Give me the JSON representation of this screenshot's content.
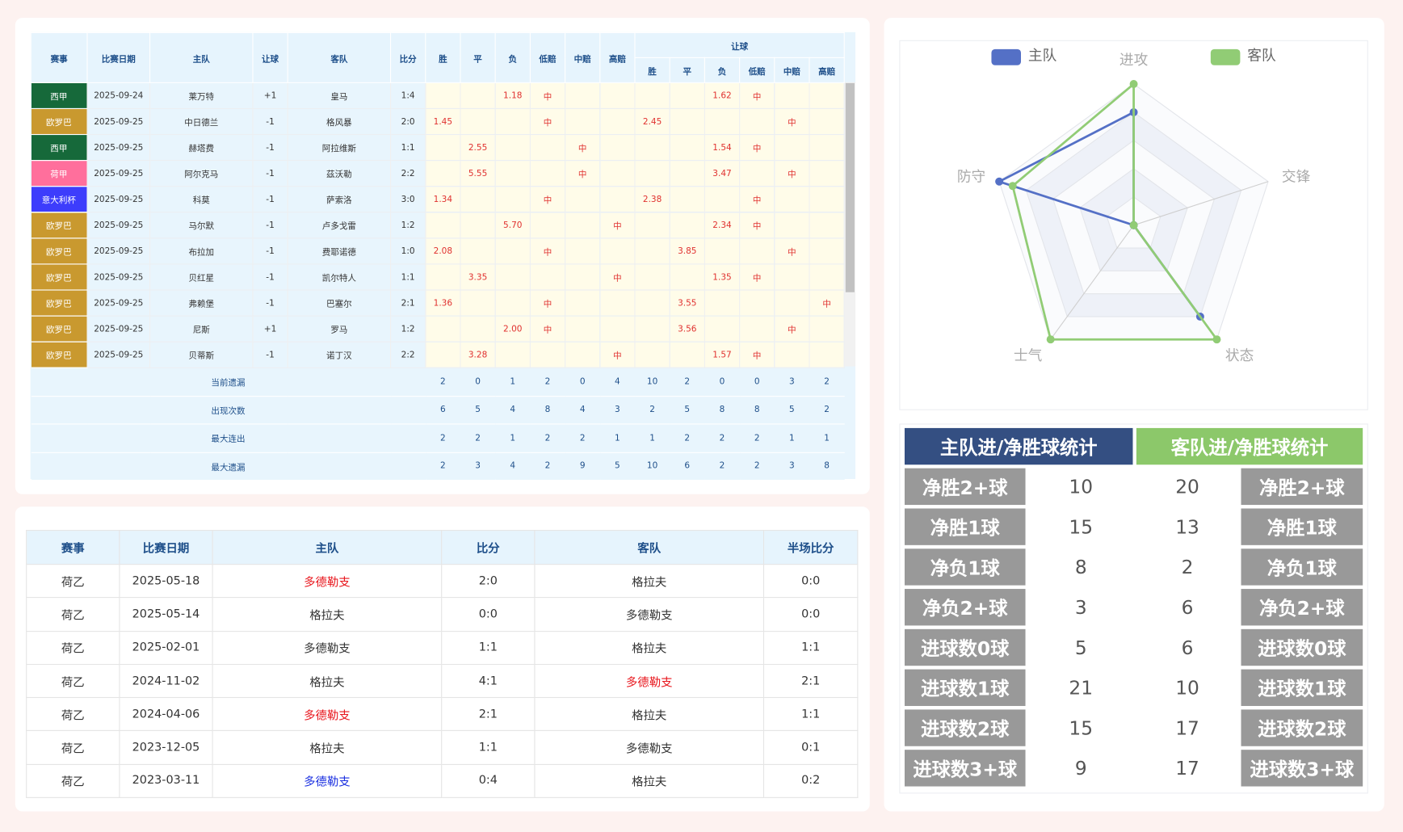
{
  "odds_table": {
    "headers": [
      "赛事",
      "比赛日期",
      "主队",
      "让球",
      "客队",
      "比分",
      "胜",
      "平",
      "负",
      "低赔",
      "中赔",
      "高赔"
    ],
    "group_header": "让球",
    "sub_headers": [
      "胜",
      "平",
      "负",
      "低赔",
      "中赔",
      "高赔"
    ],
    "league_colors": [
      "#16693a",
      "#c9992f",
      "#16693a",
      "#ff6f9c",
      "#3d3dfc",
      "#c9992f",
      "#c9992f",
      "#c9992f",
      "#c9992f",
      "#c9992f",
      "#c9992f"
    ],
    "rows": [
      [
        "西甲",
        "2025-09-24",
        "莱万特",
        "+1",
        "皇马",
        "1:4",
        null,
        null,
        "1.18",
        "中",
        null,
        null,
        null,
        null,
        "1.62",
        "中",
        null,
        null
      ],
      [
        "欧罗巴",
        "2025-09-25",
        "中日德兰",
        "-1",
        "格风暴",
        "2:0",
        "1.45",
        null,
        null,
        "中",
        null,
        null,
        "2.45",
        null,
        null,
        null,
        "中",
        null
      ],
      [
        "西甲",
        "2025-09-25",
        "赫塔费",
        "-1",
        "阿拉维斯",
        "1:1",
        null,
        "2.55",
        null,
        null,
        "中",
        null,
        null,
        null,
        "1.54",
        "中",
        null,
        null
      ],
      [
        "荷甲",
        "2025-09-25",
        "阿尔克马",
        "-1",
        "茲沃勒",
        "2:2",
        null,
        "5.55",
        null,
        null,
        "中",
        null,
        null,
        null,
        "3.47",
        null,
        "中",
        null
      ],
      [
        "意大利杯",
        "2025-09-25",
        "科莫",
        "-1",
        "萨索洛",
        "3:0",
        "1.34",
        null,
        null,
        "中",
        null,
        null,
        "2.38",
        null,
        null,
        "中",
        null,
        null
      ],
      [
        "欧罗巴",
        "2025-09-25",
        "马尔默",
        "-1",
        "卢多戈雷",
        "1:2",
        null,
        null,
        "5.70",
        null,
        null,
        "中",
        null,
        null,
        "2.34",
        "中",
        null,
        null
      ],
      [
        "欧罗巴",
        "2025-09-25",
        "布拉加",
        "-1",
        "费耶诺德",
        "1:0",
        "2.08",
        null,
        null,
        "中",
        null,
        null,
        null,
        "3.85",
        null,
        null,
        "中",
        null
      ],
      [
        "欧罗巴",
        "2025-09-25",
        "贝红星",
        "-1",
        "凯尔特人",
        "1:1",
        null,
        "3.35",
        null,
        null,
        null,
        "中",
        null,
        null,
        "1.35",
        "中",
        null,
        null
      ],
      [
        "欧罗巴",
        "2025-09-25",
        "弗赖堡",
        "-1",
        "巴塞尔",
        "2:1",
        "1.36",
        null,
        null,
        "中",
        null,
        null,
        null,
        "3.55",
        null,
        null,
        null,
        "中"
      ],
      [
        "欧罗巴",
        "2025-09-25",
        "尼斯",
        "+1",
        "罗马",
        "1:2",
        null,
        null,
        "2.00",
        "中",
        null,
        null,
        null,
        "3.56",
        null,
        null,
        "中",
        null
      ],
      [
        "欧罗巴",
        "2025-09-25",
        "贝蒂斯",
        "-1",
        "诺丁汉",
        "2:2",
        null,
        "3.28",
        null,
        null,
        null,
        "中",
        null,
        null,
        "1.57",
        "中",
        null,
        null
      ]
    ],
    "summary": [
      {
        "label": "当前遗漏",
        "values": [
          2,
          0,
          1,
          2,
          0,
          4,
          10,
          2,
          0,
          0,
          3,
          2
        ]
      },
      {
        "label": "出现次数",
        "values": [
          6,
          5,
          4,
          8,
          4,
          3,
          2,
          5,
          8,
          8,
          5,
          2
        ]
      },
      {
        "label": "最大连出",
        "values": [
          2,
          2,
          1,
          2,
          2,
          1,
          1,
          2,
          2,
          2,
          1,
          1
        ]
      },
      {
        "label": "最大遗漏",
        "values": [
          2,
          3,
          4,
          2,
          9,
          5,
          10,
          6,
          2,
          2,
          3,
          8
        ]
      }
    ]
  },
  "history_table": {
    "headers": [
      "赛事",
      "比赛日期",
      "主队",
      "比分",
      "客队",
      "半场比分"
    ],
    "rows": [
      [
        "荷乙",
        "2025-05-18",
        "多德勒支",
        "2:0",
        "格拉夫",
        "0:0"
      ],
      [
        "荷乙",
        "2025-05-14",
        "格拉夫",
        "0:0",
        "多德勒支",
        "0:0"
      ],
      [
        "荷乙",
        "2025-02-01",
        "多德勒支",
        "1:1",
        "格拉夫",
        "1:1"
      ],
      [
        "荷乙",
        "2024-11-02",
        "格拉夫",
        "4:1",
        "多德勒支",
        "2:1"
      ],
      [
        "荷乙",
        "2024-04-06",
        "多德勒支",
        "2:1",
        "格拉夫",
        "1:1"
      ],
      [
        "荷乙",
        "2023-12-05",
        "格拉夫",
        "1:1",
        "多德勒支",
        "0:1"
      ],
      [
        "荷乙",
        "2023-03-11",
        "多德勒支",
        "0:4",
        "格拉夫",
        "0:2"
      ]
    ],
    "team_colors": [
      [
        "#e8141b",
        null
      ],
      [
        null,
        null
      ],
      [
        null,
        null
      ],
      [
        null,
        "#e8141b"
      ],
      [
        "#e8141b",
        null
      ],
      [
        null,
        null
      ],
      [
        "#1a2fe0",
        null
      ]
    ]
  },
  "chart_data": {
    "type": "radar",
    "indicators": [
      "进攻",
      "交锋",
      "状态",
      "士气",
      "防守"
    ],
    "rlim": [
      0,
      100
    ],
    "series": [
      {
        "name": "主队",
        "color": "#5470c6",
        "values": [
          80,
          0,
          80,
          0,
          100
        ]
      },
      {
        "name": "客队",
        "color": "#91cc75",
        "values": [
          100,
          0,
          100,
          100,
          90
        ]
      }
    ]
  },
  "goal_stats": {
    "home_title": "主队进/净胜球统计",
    "away_title": "客队进/净胜球统计",
    "home_color": "#344f82",
    "away_color": "#8cc86a",
    "labels": [
      "净胜2+球",
      "净胜1球",
      "净负1球",
      "净负2+球",
      "进球数0球",
      "进球数1球",
      "进球数2球",
      "进球数3+球"
    ],
    "home_values": [
      10,
      15,
      8,
      3,
      5,
      21,
      15,
      9
    ],
    "away_values": [
      20,
      13,
      2,
      6,
      6,
      10,
      17,
      17
    ]
  }
}
